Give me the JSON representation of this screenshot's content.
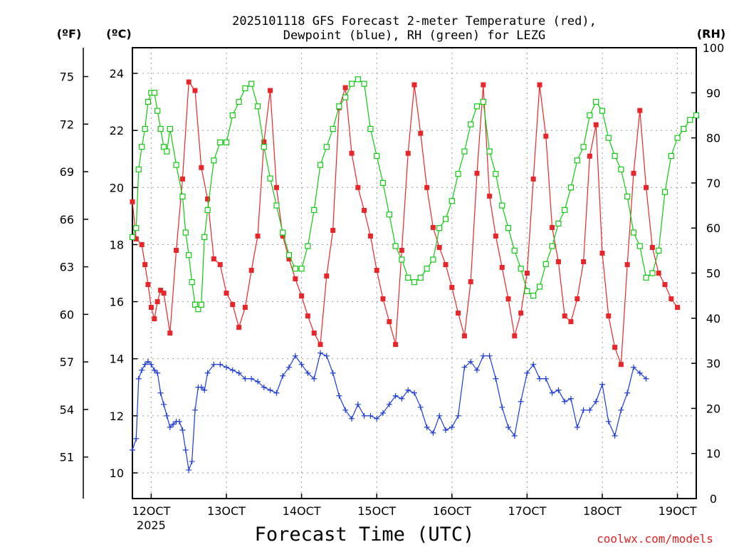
{
  "chart_data": {
    "type": "line",
    "title_line1": "2025101118 GFS Forecast 2-meter Temperature (red),",
    "title_line2": "Dewpoint (blue), RH (green) for LEZG",
    "xlabel": "Forecast Time (UTC)",
    "credit": "coolwx.com/models",
    "units": {
      "fahrenheit": "(ºF)",
      "celsius": "(ºC)",
      "rh": "(RH)"
    },
    "x_unit": "days since 00Z 12 Oct 2025",
    "xlim": [
      -0.25,
      7.25
    ],
    "ylim_celsius": [
      9.1,
      24.9
    ],
    "ylim_rh": [
      0,
      100
    ],
    "x_ticks": [
      {
        "x": 0,
        "label": "12OCT",
        "sublabel": "2025"
      },
      {
        "x": 1,
        "label": "13OCT"
      },
      {
        "x": 2,
        "label": "14OCT"
      },
      {
        "x": 3,
        "label": "15OCT"
      },
      {
        "x": 4,
        "label": "16OCT"
      },
      {
        "x": 5,
        "label": "17OCT"
      },
      {
        "x": 6,
        "label": "18OCT"
      },
      {
        "x": 7,
        "label": "19OCT"
      }
    ],
    "celsius_ticks": [
      "10",
      "12",
      "14",
      "16",
      "18",
      "20",
      "22",
      "24"
    ],
    "fahrenheit_ticks": [
      "51",
      "54",
      "57",
      "60",
      "63",
      "66",
      "69",
      "72",
      "75"
    ],
    "rh_ticks": [
      "0",
      "10",
      "20",
      "30",
      "40",
      "50",
      "60",
      "70",
      "80",
      "90",
      "100"
    ],
    "series": [
      {
        "name": "Temperature",
        "unit": "C",
        "color": "#e8262a",
        "marker": "square-filled",
        "points": [
          [
            -0.25,
            19.5
          ],
          [
            -0.2,
            18.2
          ],
          [
            -0.125,
            18.0
          ],
          [
            -0.083,
            17.3
          ],
          [
            -0.042,
            16.6
          ],
          [
            0.0,
            15.8
          ],
          [
            0.042,
            15.4
          ],
          [
            0.083,
            16.0
          ],
          [
            0.125,
            16.4
          ],
          [
            0.167,
            16.3
          ],
          [
            0.25,
            14.9
          ],
          [
            0.333,
            17.8
          ],
          [
            0.417,
            20.3
          ],
          [
            0.5,
            23.7
          ],
          [
            0.583,
            23.4
          ],
          [
            0.667,
            20.7
          ],
          [
            0.75,
            19.6
          ],
          [
            0.833,
            17.5
          ],
          [
            0.917,
            17.3
          ],
          [
            1.0,
            16.3
          ],
          [
            1.083,
            15.9
          ],
          [
            1.167,
            15.1
          ],
          [
            1.25,
            15.8
          ],
          [
            1.333,
            17.1
          ],
          [
            1.417,
            18.3
          ],
          [
            1.5,
            21.6
          ],
          [
            1.583,
            23.4
          ],
          [
            1.667,
            20.0
          ],
          [
            1.75,
            18.3
          ],
          [
            1.833,
            17.5
          ],
          [
            1.917,
            16.8
          ],
          [
            2.0,
            16.2
          ],
          [
            2.083,
            15.5
          ],
          [
            2.167,
            14.9
          ],
          [
            2.25,
            14.5
          ],
          [
            2.333,
            16.9
          ],
          [
            2.417,
            18.5
          ],
          [
            2.5,
            22.8
          ],
          [
            2.583,
            23.5
          ],
          [
            2.667,
            21.2
          ],
          [
            2.75,
            20.0
          ],
          [
            2.833,
            19.2
          ],
          [
            2.917,
            18.3
          ],
          [
            3.0,
            17.1
          ],
          [
            3.083,
            16.1
          ],
          [
            3.167,
            15.3
          ],
          [
            3.25,
            14.5
          ],
          [
            3.333,
            17.8
          ],
          [
            3.417,
            21.2
          ],
          [
            3.5,
            23.6
          ],
          [
            3.583,
            21.9
          ],
          [
            3.667,
            20.0
          ],
          [
            3.75,
            18.6
          ],
          [
            3.833,
            17.9
          ],
          [
            3.917,
            17.3
          ],
          [
            4.0,
            16.5
          ],
          [
            4.083,
            15.6
          ],
          [
            4.167,
            14.8
          ],
          [
            4.25,
            16.7
          ],
          [
            4.333,
            20.5
          ],
          [
            4.417,
            23.6
          ],
          [
            4.5,
            19.7
          ],
          [
            4.583,
            18.3
          ],
          [
            4.667,
            17.2
          ],
          [
            4.75,
            16.1
          ],
          [
            4.833,
            14.8
          ],
          [
            4.917,
            15.6
          ],
          [
            5.0,
            17.0
          ],
          [
            5.083,
            20.3
          ],
          [
            5.167,
            23.6
          ],
          [
            5.25,
            21.8
          ],
          [
            5.333,
            18.6
          ],
          [
            5.417,
            17.4
          ],
          [
            5.5,
            15.5
          ],
          [
            5.583,
            15.3
          ],
          [
            5.667,
            16.1
          ],
          [
            5.75,
            17.4
          ],
          [
            5.833,
            21.1
          ],
          [
            5.917,
            22.2
          ],
          [
            6.0,
            17.7
          ],
          [
            6.083,
            15.5
          ],
          [
            6.167,
            14.4
          ],
          [
            6.25,
            13.8
          ],
          [
            6.333,
            17.3
          ],
          [
            6.417,
            20.5
          ],
          [
            6.5,
            22.7
          ],
          [
            6.583,
            20.0
          ],
          [
            6.667,
            17.9
          ],
          [
            6.75,
            17.0
          ],
          [
            6.833,
            16.6
          ],
          [
            6.917,
            16.1
          ],
          [
            7.0,
            15.8
          ]
        ]
      },
      {
        "name": "Dewpoint",
        "unit": "C",
        "color": "#1c3bd6",
        "marker": "plus",
        "points": [
          [
            -0.25,
            10.8
          ],
          [
            -0.2,
            11.2
          ],
          [
            -0.167,
            13.3
          ],
          [
            -0.125,
            13.6
          ],
          [
            -0.083,
            13.8
          ],
          [
            -0.042,
            13.9
          ],
          [
            0.0,
            13.8
          ],
          [
            0.042,
            13.6
          ],
          [
            0.083,
            13.5
          ],
          [
            0.125,
            12.8
          ],
          [
            0.167,
            12.4
          ],
          [
            0.208,
            12.0
          ],
          [
            0.25,
            11.6
          ],
          [
            0.292,
            11.7
          ],
          [
            0.333,
            11.8
          ],
          [
            0.375,
            11.8
          ],
          [
            0.417,
            11.5
          ],
          [
            0.458,
            10.8
          ],
          [
            0.5,
            10.1
          ],
          [
            0.542,
            10.4
          ],
          [
            0.583,
            12.2
          ],
          [
            0.625,
            13.0
          ],
          [
            0.667,
            13.0
          ],
          [
            0.708,
            12.9
          ],
          [
            0.75,
            13.5
          ],
          [
            0.833,
            13.8
          ],
          [
            0.917,
            13.8
          ],
          [
            1.0,
            13.7
          ],
          [
            1.083,
            13.6
          ],
          [
            1.167,
            13.5
          ],
          [
            1.25,
            13.3
          ],
          [
            1.333,
            13.3
          ],
          [
            1.417,
            13.2
          ],
          [
            1.5,
            13.0
          ],
          [
            1.583,
            12.9
          ],
          [
            1.667,
            12.8
          ],
          [
            1.75,
            13.4
          ],
          [
            1.833,
            13.7
          ],
          [
            1.917,
            14.1
          ],
          [
            2.0,
            13.8
          ],
          [
            2.083,
            13.5
          ],
          [
            2.167,
            13.3
          ],
          [
            2.25,
            14.2
          ],
          [
            2.333,
            14.1
          ],
          [
            2.417,
            13.5
          ],
          [
            2.5,
            12.7
          ],
          [
            2.583,
            12.2
          ],
          [
            2.667,
            11.9
          ],
          [
            2.75,
            12.4
          ],
          [
            2.833,
            12.0
          ],
          [
            2.917,
            12.0
          ],
          [
            3.0,
            11.9
          ],
          [
            3.083,
            12.1
          ],
          [
            3.167,
            12.4
          ],
          [
            3.25,
            12.7
          ],
          [
            3.333,
            12.6
          ],
          [
            3.417,
            12.9
          ],
          [
            3.5,
            12.8
          ],
          [
            3.583,
            12.3
          ],
          [
            3.667,
            11.6
          ],
          [
            3.75,
            11.4
          ],
          [
            3.833,
            12.0
          ],
          [
            3.917,
            11.5
          ],
          [
            4.0,
            11.6
          ],
          [
            4.083,
            12.0
          ],
          [
            4.167,
            13.7
          ],
          [
            4.25,
            13.9
          ],
          [
            4.333,
            13.6
          ],
          [
            4.417,
            14.1
          ],
          [
            4.5,
            14.1
          ],
          [
            4.583,
            13.3
          ],
          [
            4.667,
            12.3
          ],
          [
            4.75,
            11.6
          ],
          [
            4.833,
            11.3
          ],
          [
            4.917,
            12.5
          ],
          [
            5.0,
            13.5
          ],
          [
            5.083,
            13.8
          ],
          [
            5.167,
            13.3
          ],
          [
            5.25,
            13.3
          ],
          [
            5.333,
            12.8
          ],
          [
            5.417,
            12.9
          ],
          [
            5.5,
            12.5
          ],
          [
            5.583,
            12.6
          ],
          [
            5.667,
            11.6
          ],
          [
            5.75,
            12.2
          ],
          [
            5.833,
            12.2
          ],
          [
            5.917,
            12.5
          ],
          [
            6.0,
            13.1
          ],
          [
            6.083,
            11.8
          ],
          [
            6.167,
            11.3
          ],
          [
            6.25,
            12.2
          ],
          [
            6.333,
            12.8
          ],
          [
            6.417,
            13.7
          ],
          [
            6.5,
            13.5
          ],
          [
            6.583,
            13.3
          ]
        ]
      },
      {
        "name": "Relative Humidity",
        "unit": "%",
        "color": "#11c811",
        "marker": "square-open",
        "points": [
          [
            -0.25,
            58
          ],
          [
            -0.2,
            60
          ],
          [
            -0.167,
            73
          ],
          [
            -0.125,
            78
          ],
          [
            -0.083,
            82
          ],
          [
            -0.042,
            88
          ],
          [
            0.0,
            90
          ],
          [
            0.042,
            90
          ],
          [
            0.083,
            86
          ],
          [
            0.125,
            82
          ],
          [
            0.167,
            78
          ],
          [
            0.208,
            77
          ],
          [
            0.25,
            82
          ],
          [
            0.333,
            74
          ],
          [
            0.417,
            67
          ],
          [
            0.458,
            59
          ],
          [
            0.5,
            54
          ],
          [
            0.542,
            48
          ],
          [
            0.583,
            43
          ],
          [
            0.625,
            42
          ],
          [
            0.667,
            43
          ],
          [
            0.708,
            58
          ],
          [
            0.75,
            64
          ],
          [
            0.833,
            75
          ],
          [
            0.917,
            79
          ],
          [
            1.0,
            79
          ],
          [
            1.083,
            85
          ],
          [
            1.167,
            88
          ],
          [
            1.25,
            91
          ],
          [
            1.333,
            92
          ],
          [
            1.417,
            87
          ],
          [
            1.5,
            78
          ],
          [
            1.583,
            71
          ],
          [
            1.667,
            65
          ],
          [
            1.75,
            59
          ],
          [
            1.833,
            54
          ],
          [
            1.917,
            51
          ],
          [
            2.0,
            51
          ],
          [
            2.083,
            56
          ],
          [
            2.167,
            64
          ],
          [
            2.25,
            74
          ],
          [
            2.333,
            78
          ],
          [
            2.417,
            82
          ],
          [
            2.5,
            87
          ],
          [
            2.583,
            89
          ],
          [
            2.667,
            92
          ],
          [
            2.75,
            93
          ],
          [
            2.833,
            92
          ],
          [
            2.917,
            82
          ],
          [
            3.0,
            76
          ],
          [
            3.083,
            70
          ],
          [
            3.167,
            63
          ],
          [
            3.25,
            56
          ],
          [
            3.333,
            53
          ],
          [
            3.417,
            49
          ],
          [
            3.5,
            48
          ],
          [
            3.583,
            49
          ],
          [
            3.667,
            51
          ],
          [
            3.75,
            53
          ],
          [
            3.833,
            60
          ],
          [
            3.917,
            62
          ],
          [
            4.0,
            66
          ],
          [
            4.083,
            72
          ],
          [
            4.167,
            77
          ],
          [
            4.25,
            83
          ],
          [
            4.333,
            87
          ],
          [
            4.417,
            88
          ],
          [
            4.5,
            77
          ],
          [
            4.583,
            72
          ],
          [
            4.667,
            65
          ],
          [
            4.75,
            60
          ],
          [
            4.833,
            55
          ],
          [
            4.917,
            51
          ],
          [
            5.0,
            46
          ],
          [
            5.083,
            45
          ],
          [
            5.167,
            47
          ],
          [
            5.25,
            52
          ],
          [
            5.333,
            56
          ],
          [
            5.417,
            61
          ],
          [
            5.5,
            64
          ],
          [
            5.583,
            69
          ],
          [
            5.667,
            75
          ],
          [
            5.75,
            78
          ],
          [
            5.833,
            85
          ],
          [
            5.917,
            88
          ],
          [
            6.0,
            86
          ],
          [
            6.083,
            80
          ],
          [
            6.167,
            76
          ],
          [
            6.25,
            73
          ],
          [
            6.333,
            67
          ],
          [
            6.417,
            59
          ],
          [
            6.5,
            56
          ],
          [
            6.583,
            49
          ],
          [
            6.667,
            50
          ],
          [
            6.75,
            55
          ],
          [
            6.833,
            68
          ],
          [
            6.917,
            76
          ],
          [
            7.0,
            80
          ],
          [
            7.083,
            82
          ],
          [
            7.167,
            84
          ],
          [
            7.25,
            85
          ]
        ]
      }
    ]
  }
}
